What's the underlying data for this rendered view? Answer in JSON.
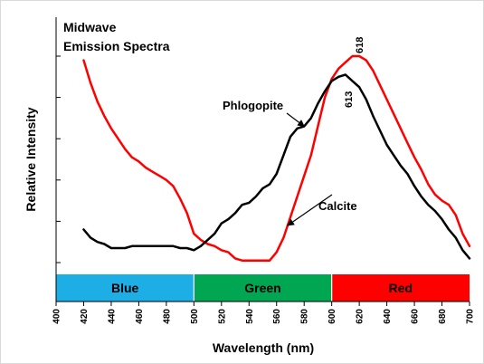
{
  "chart_data": {
    "type": "line",
    "title_lines": [
      "Midwave",
      "Emission Spectra"
    ],
    "xlabel": "Wavelength (nm)",
    "ylabel": "Relative Intensity",
    "xlim": [
      400,
      700
    ],
    "ylim": [
      0,
      1
    ],
    "xticks": [
      400,
      420,
      440,
      460,
      480,
      500,
      520,
      540,
      560,
      580,
      600,
      620,
      640,
      660,
      680,
      700
    ],
    "grid": false,
    "series": [
      {
        "name": "Calcite",
        "color": "#ff0000",
        "x": [
          420,
          425,
          430,
          435,
          440,
          445,
          450,
          455,
          460,
          465,
          470,
          475,
          480,
          485,
          490,
          495,
          500,
          505,
          510,
          515,
          520,
          525,
          530,
          535,
          540,
          545,
          550,
          555,
          560,
          565,
          570,
          575,
          580,
          585,
          590,
          595,
          600,
          605,
          610,
          615,
          620,
          625,
          630,
          635,
          640,
          645,
          650,
          655,
          660,
          665,
          670,
          675,
          680,
          685,
          690,
          695,
          700
        ],
        "y": [
          0.98,
          0.87,
          0.78,
          0.71,
          0.65,
          0.6,
          0.55,
          0.51,
          0.49,
          0.46,
          0.44,
          0.42,
          0.4,
          0.37,
          0.31,
          0.24,
          0.14,
          0.11,
          0.09,
          0.08,
          0.06,
          0.05,
          0.02,
          0.01,
          0.01,
          0.01,
          0.01,
          0.01,
          0.05,
          0.12,
          0.22,
          0.32,
          0.42,
          0.52,
          0.66,
          0.8,
          0.89,
          0.94,
          0.97,
          1.0,
          1.0,
          0.98,
          0.93,
          0.86,
          0.79,
          0.72,
          0.65,
          0.58,
          0.51,
          0.45,
          0.38,
          0.33,
          0.3,
          0.28,
          0.23,
          0.14,
          0.08
        ]
      },
      {
        "name": "Phlogopite",
        "color": "#000000",
        "x": [
          420,
          425,
          430,
          435,
          440,
          445,
          450,
          455,
          460,
          465,
          470,
          475,
          480,
          485,
          490,
          495,
          500,
          505,
          510,
          515,
          520,
          525,
          530,
          535,
          540,
          545,
          550,
          555,
          560,
          565,
          570,
          575,
          580,
          585,
          590,
          595,
          600,
          605,
          610,
          615,
          620,
          625,
          630,
          635,
          640,
          645,
          650,
          655,
          660,
          665,
          670,
          675,
          680,
          685,
          690,
          695,
          700
        ],
        "y": [
          0.16,
          0.12,
          0.1,
          0.09,
          0.07,
          0.07,
          0.07,
          0.08,
          0.08,
          0.08,
          0.08,
          0.08,
          0.08,
          0.08,
          0.07,
          0.07,
          0.06,
          0.08,
          0.11,
          0.14,
          0.19,
          0.21,
          0.24,
          0.28,
          0.29,
          0.32,
          0.36,
          0.38,
          0.43,
          0.52,
          0.61,
          0.65,
          0.66,
          0.7,
          0.77,
          0.83,
          0.88,
          0.9,
          0.91,
          0.88,
          0.85,
          0.79,
          0.71,
          0.64,
          0.57,
          0.52,
          0.47,
          0.43,
          0.37,
          0.32,
          0.28,
          0.25,
          0.21,
          0.16,
          0.12,
          0.06,
          0.02
        ]
      }
    ],
    "color_bands": [
      {
        "label": "Blue",
        "start": 400,
        "end": 500,
        "color": "#1eaee6"
      },
      {
        "label": "Green",
        "start": 500,
        "end": 600,
        "color": "#00a651"
      },
      {
        "label": "Red",
        "start": 600,
        "end": 700,
        "color": "#ff0000"
      }
    ],
    "annotations": [
      {
        "text": "Phlogopite",
        "series": "Phlogopite",
        "at_x": 580
      },
      {
        "text": "Calcite",
        "series": "Calcite",
        "at_x": 568
      }
    ],
    "peak_labels": [
      {
        "text": "613",
        "x": 613
      },
      {
        "text": "618",
        "x": 618
      }
    ]
  }
}
